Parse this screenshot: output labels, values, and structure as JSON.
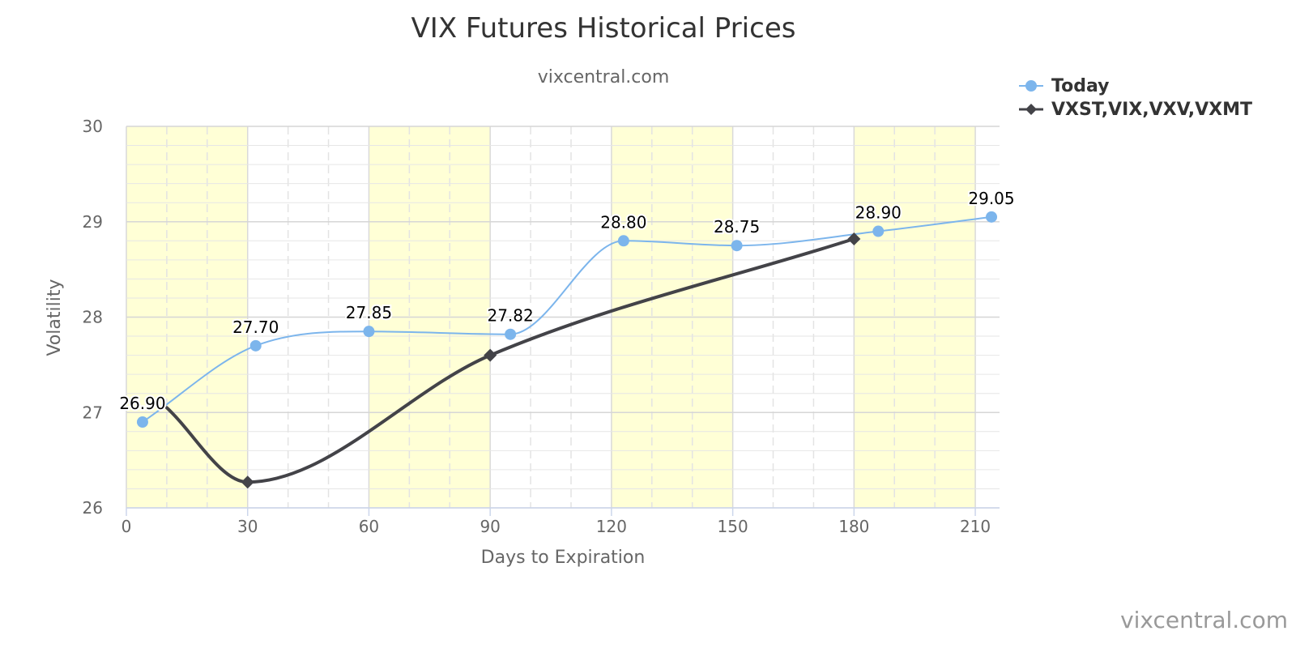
{
  "chart_data": {
    "type": "line",
    "title": "VIX Futures Historical Prices",
    "subtitle": "vixcentral.com",
    "xlabel": "Days to Expiration",
    "ylabel": "Volatility",
    "xlim": [
      0,
      216
    ],
    "ylim": [
      26,
      30
    ],
    "xticks": [
      0,
      30,
      60,
      90,
      120,
      150,
      180,
      210
    ],
    "yticks": [
      26,
      27,
      28,
      29,
      30
    ],
    "grid": true,
    "shaded_bands": [
      [
        0,
        30
      ],
      [
        60,
        90
      ],
      [
        120,
        150
      ],
      [
        180,
        210
      ]
    ],
    "legend_position": "top-right",
    "series": [
      {
        "name": "Today",
        "color": "#7cb5ec",
        "marker": "circle",
        "x": [
          4,
          32,
          60,
          95,
          123,
          151,
          186,
          214
        ],
        "y": [
          26.9,
          27.7,
          27.85,
          27.82,
          28.8,
          28.75,
          28.9,
          29.05
        ],
        "labels": [
          "26.90",
          "27.70",
          "27.85",
          "27.82",
          "28.80",
          "28.75",
          "28.90",
          "29.05"
        ]
      },
      {
        "name": "VXST,VIX,VXV,VXMT",
        "color": "#434348",
        "marker": "diamond",
        "x": [
          10,
          30,
          90,
          180
        ],
        "y": [
          27.05,
          26.27,
          27.6,
          28.82
        ],
        "marker_visible": [
          false,
          true,
          true,
          true
        ]
      }
    ],
    "credit": "vixcentral.com"
  }
}
